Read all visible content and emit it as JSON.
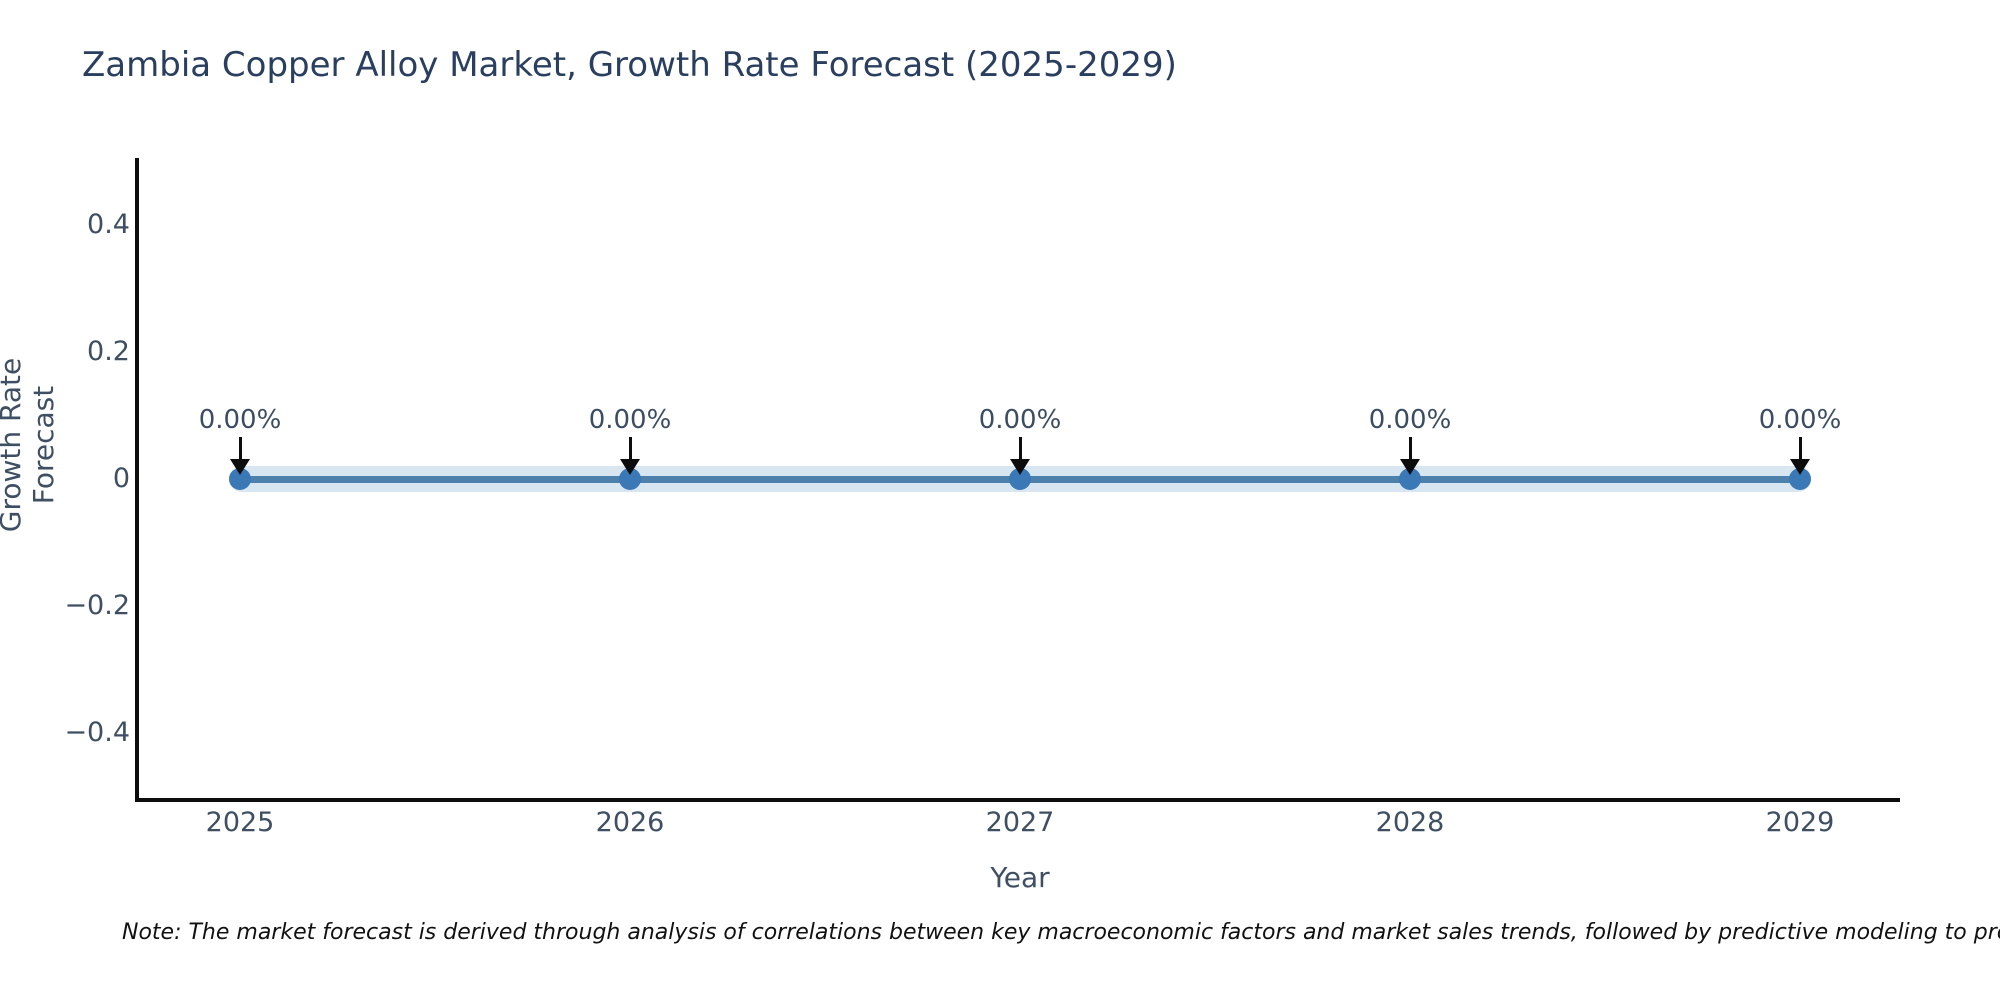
{
  "title": "Zambia Copper Alloy Market, Growth Rate Forecast (2025-2029)",
  "note": "Note: The market forecast is derived through analysis of correlations between key macroeconomic factors and market sales trends, followed by predictive modeling to project future sales",
  "chart_data": {
    "type": "line",
    "title": "Zambia Copper Alloy Market, Growth Rate Forecast (2025-2029)",
    "xlabel": "Year",
    "ylabel": "Growth Rate Forecast",
    "x": [
      2025,
      2026,
      2027,
      2028,
      2029
    ],
    "categories": [
      "2025",
      "2026",
      "2027",
      "2028",
      "2029"
    ],
    "values": [
      0,
      0,
      0,
      0,
      0
    ],
    "point_labels": [
      "0.00%",
      "0.00%",
      "0.00%",
      "0.00%",
      "0.00%"
    ],
    "y_ticks": [
      {
        "value": 0.4,
        "label": "0.4"
      },
      {
        "value": 0.2,
        "label": "0.2"
      },
      {
        "value": 0,
        "label": "0"
      },
      {
        "value": -0.2,
        "label": "−0.2"
      },
      {
        "value": -0.4,
        "label": "−0.4"
      }
    ],
    "ylim": [
      -0.5,
      0.5
    ],
    "grid": false,
    "legend": false,
    "annotation_arrows": true,
    "colors": {
      "line": "#4e80ac",
      "line_halo": "#d8e6f2",
      "marker": "#3b79b6",
      "axis": "#0d0d0d",
      "title_text": "#2a3f5f",
      "tick_text": "#3f4f63"
    }
  }
}
